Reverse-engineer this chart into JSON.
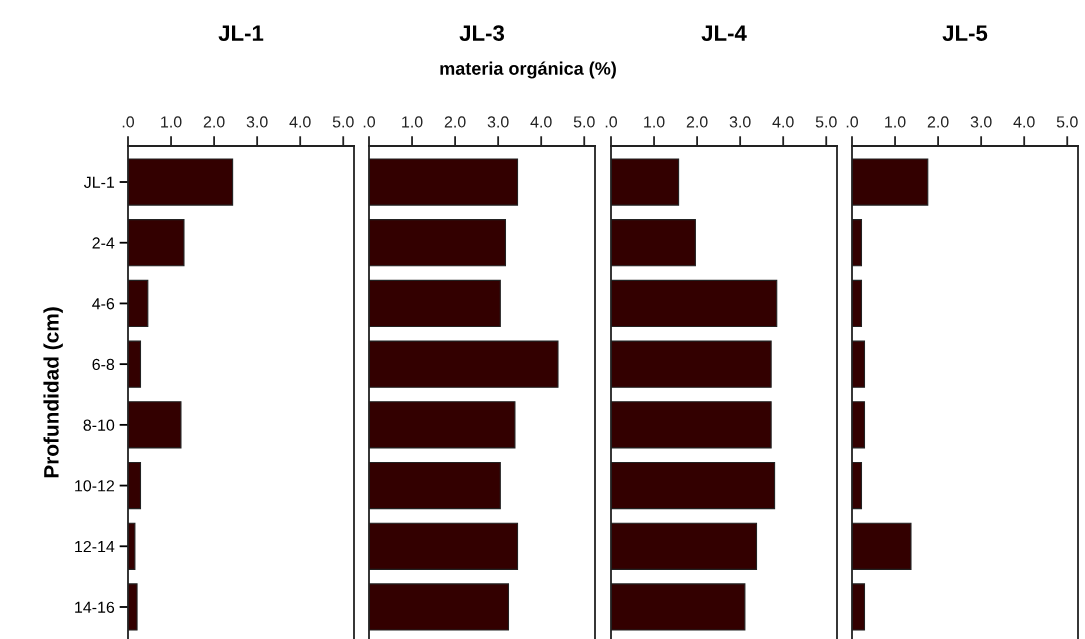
{
  "chart_data": [
    {
      "type": "bar",
      "orientation": "horizontal",
      "title": "JL-1",
      "ylabel": "Profundidad (cm)",
      "categories": [
        "JL-1",
        "2-4",
        "4-6",
        "6-8",
        "8-10",
        "10-12",
        "12-14",
        "14-16"
      ],
      "values": [
        2.43,
        1.3,
        0.46,
        0.29,
        1.23,
        0.29,
        0.16,
        0.21
      ],
      "color": "#330000",
      "xlim": [
        0,
        5.25
      ],
      "xticks": [
        {
          "value": 0,
          "label": ".0"
        },
        {
          "value": 1,
          "label": "1.0"
        },
        {
          "value": 2,
          "label": "2.0"
        },
        {
          "value": 3,
          "label": "3.0"
        },
        {
          "value": 4,
          "label": "4.0"
        },
        {
          "value": 5,
          "label": "5.0"
        }
      ],
      "grid": false
    },
    {
      "type": "bar",
      "orientation": "horizontal",
      "title": "JL-3",
      "xlabel": "materia orgánica (%)",
      "categories": [
        null,
        null,
        null,
        null,
        null,
        null,
        null,
        null
      ],
      "values": [
        3.45,
        3.17,
        3.05,
        4.39,
        3.39,
        3.05,
        3.45,
        3.24
      ],
      "color": "#330000",
      "xlim": [
        0,
        5.25
      ],
      "xticks": [
        {
          "value": 0,
          "label": ".0"
        },
        {
          "value": 1,
          "label": "1.0"
        },
        {
          "value": 2,
          "label": "2.0"
        },
        {
          "value": 3,
          "label": "3.0"
        },
        {
          "value": 4,
          "label": "4.0"
        },
        {
          "value": 5,
          "label": "5.0"
        }
      ],
      "tick_labels": "x",
      "grid": false
    },
    {
      "type": "bar",
      "orientation": "horizontal",
      "title": "JL-4",
      "categories": [
        null,
        null,
        null,
        null,
        null,
        null,
        null,
        null
      ],
      "values": [
        1.57,
        1.96,
        3.85,
        3.72,
        3.72,
        3.8,
        3.38,
        3.11
      ],
      "color": "#330000",
      "xlim": [
        0,
        5.25
      ],
      "xticks": [
        {
          "value": 0,
          "label": ".0"
        },
        {
          "value": 1,
          "label": "1.0"
        },
        {
          "value": 2,
          "label": "2.0"
        },
        {
          "value": 3,
          "label": "3.0"
        },
        {
          "value": 4,
          "label": "4.0"
        },
        {
          "value": 5,
          "label": "5.0"
        }
      ],
      "tick_labels": "x",
      "grid": false
    },
    {
      "type": "bar",
      "orientation": "horizontal",
      "title": "JL-5",
      "categories": [
        null,
        null,
        null,
        null,
        null,
        null,
        null,
        null
      ],
      "values": [
        1.76,
        0.22,
        0.22,
        0.29,
        0.29,
        0.22,
        1.37,
        0.29
      ],
      "color": "#330000",
      "xlim": [
        0,
        5.25
      ],
      "xticks": [
        {
          "value": 0,
          "label": ".0"
        },
        {
          "value": 1,
          "label": "1.0"
        },
        {
          "value": 2,
          "label": "2.0"
        },
        {
          "value": 3,
          "label": "3.0"
        },
        {
          "value": 4,
          "label": "4.0"
        },
        {
          "value": 5,
          "label": "5.0"
        }
      ],
      "tick_labels": "x",
      "grid": false
    }
  ]
}
